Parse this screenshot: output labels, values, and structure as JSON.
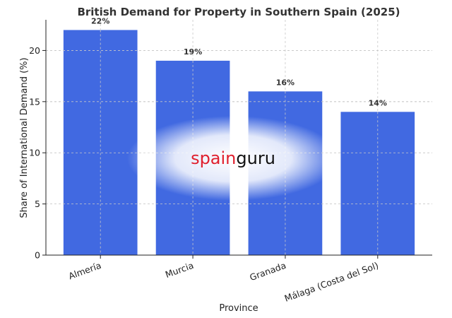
{
  "chart_data": {
    "type": "bar",
    "title": "British Demand for Property in Southern Spain (2025)",
    "xlabel": "Province",
    "ylabel": "Share of International Demand (%)",
    "categories": [
      "Almería",
      "Murcia",
      "Granada",
      "Málaga (Costa del Sol)"
    ],
    "values": [
      22,
      19,
      16,
      14
    ],
    "data_labels": [
      "22%",
      "19%",
      "16%",
      "14%"
    ],
    "ylim": [
      0,
      23
    ],
    "yticks": [
      0,
      5,
      10,
      15,
      20
    ],
    "grid": true,
    "bar_color": "#4169e1"
  },
  "watermark": {
    "part1": "spain",
    "part2": "guru",
    "color1": "#e0202e",
    "color2": "#111111"
  }
}
